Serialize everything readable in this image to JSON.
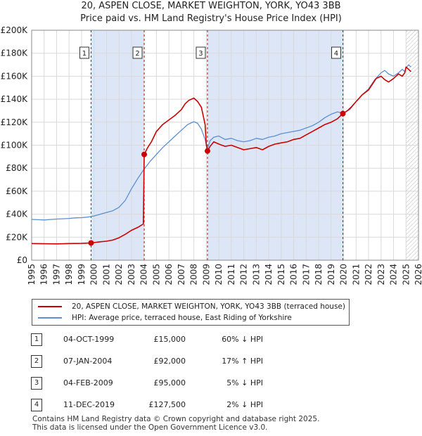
{
  "title": {
    "line1": "20, ASPEN CLOSE, MARKET WEIGHTON, YORK, YO43 3BB",
    "line2": "Price paid vs. HM Land Registry's House Price Index (HPI)"
  },
  "legend": {
    "property": "20, ASPEN CLOSE, MARKET WEIGHTON, YORK, YO43 3BB (terraced house)",
    "hpi": "HPI: Average price, terraced house, East Riding of Yorkshire"
  },
  "colors": {
    "property": "#cc0000",
    "hpi": "#5b8fd1",
    "shade": "#dde6f7",
    "vline": "#cc0000"
  },
  "sales": [
    {
      "num": "1",
      "date": "04-OCT-1999",
      "price": "£15,000",
      "hpi": "60% ↓ HPI"
    },
    {
      "num": "2",
      "date": "07-JAN-2004",
      "price": "£92,000",
      "hpi": "17% ↑ HPI"
    },
    {
      "num": "3",
      "date": "04-FEB-2009",
      "price": "£95,000",
      "hpi": "5% ↓ HPI"
    },
    {
      "num": "4",
      "date": "11-DEC-2019",
      "price": "£127,500",
      "hpi": "2% ↓ HPI"
    }
  ],
  "footer": {
    "line1": "Contains HM Land Registry data © Crown copyright and database right 2025.",
    "line2": "This data is licensed under the Open Government Licence v3.0."
  },
  "chart_data": {
    "type": "line",
    "title": "20, ASPEN CLOSE, MARKET WEIGHTON, YORK, YO43 3BB — Price paid vs. HM Land Registry's House Price Index (HPI)",
    "xlim": [
      1995,
      2026
    ],
    "ylim": [
      0,
      200000
    ],
    "yticks": [
      0,
      20000,
      40000,
      60000,
      80000,
      100000,
      120000,
      140000,
      160000,
      180000,
      200000
    ],
    "ytick_labels": [
      "£0",
      "£20K",
      "£40K",
      "£60K",
      "£80K",
      "£100K",
      "£120K",
      "£140K",
      "£160K",
      "£180K",
      "£200K"
    ],
    "xticks": [
      1995,
      1996,
      1997,
      1998,
      1999,
      2000,
      2001,
      2002,
      2003,
      2004,
      2005,
      2006,
      2007,
      2008,
      2009,
      2010,
      2011,
      2012,
      2013,
      2014,
      2015,
      2016,
      2017,
      2018,
      2019,
      2020,
      2021,
      2022,
      2023,
      2024,
      2025,
      2026
    ],
    "xtick_labels": [
      "1995",
      "1996",
      "1997",
      "1998",
      "1999",
      "2000",
      "2001",
      "2002",
      "2003",
      "2004",
      "2005",
      "2006",
      "2007",
      "2008",
      "2009",
      "2010",
      "2011",
      "2012",
      "2013",
      "2014",
      "2015",
      "2016",
      "2017",
      "2018",
      "2019",
      "2020",
      "2021",
      "2022",
      "2023",
      "2024",
      "2025",
      "2026"
    ],
    "grid": true,
    "shaded_ranges": [
      [
        1999.76,
        2004.02
      ],
      [
        2009.09,
        2019.94
      ]
    ],
    "future_hatch_from": 2025.0,
    "sale_markers": [
      {
        "label": "1",
        "x": 1999.76,
        "y": 15000
      },
      {
        "label": "2",
        "x": 2004.02,
        "y": 92000
      },
      {
        "label": "3",
        "x": 2009.09,
        "y": 95000
      },
      {
        "label": "4",
        "x": 2019.94,
        "y": 127500
      }
    ],
    "series": [
      {
        "name": "20, ASPEN CLOSE, MARKET WEIGHTON, YORK, YO43 3BB (terraced house)",
        "color": "#cc0000",
        "x": [
          1995.0,
          1996.0,
          1997.0,
          1998.0,
          1999.0,
          1999.76,
          2000.5,
          2001.0,
          2001.5,
          2002.0,
          2002.5,
          2003.0,
          2003.5,
          2003.95,
          2004.0,
          2004.02,
          2004.3,
          2004.6,
          2005.0,
          2005.5,
          2006.0,
          2006.5,
          2007.0,
          2007.3,
          2007.6,
          2008.0,
          2008.3,
          2008.6,
          2008.9,
          2009.0,
          2009.09,
          2009.3,
          2009.6,
          2010.0,
          2010.5,
          2011.0,
          2011.5,
          2012.0,
          2012.5,
          2013.0,
          2013.5,
          2014.0,
          2014.5,
          2015.0,
          2015.5,
          2016.0,
          2016.5,
          2017.0,
          2017.5,
          2018.0,
          2018.5,
          2019.0,
          2019.5,
          2019.94,
          2020.3,
          2020.6,
          2021.0,
          2021.5,
          2022.0,
          2022.3,
          2022.6,
          2023.0,
          2023.3,
          2023.6,
          2024.0,
          2024.4,
          2024.7,
          2024.9,
          2025.0,
          2025.2,
          2025.4
        ],
        "y": [
          14500,
          14300,
          14200,
          14500,
          14600,
          15000,
          16000,
          16500,
          17500,
          19500,
          22500,
          26000,
          28500,
          31500,
          75000,
          92000,
          98000,
          103000,
          112000,
          118000,
          122000,
          126000,
          131000,
          136000,
          139000,
          141000,
          138000,
          133000,
          118000,
          100000,
          95000,
          99000,
          103000,
          101000,
          99000,
          100000,
          98000,
          96000,
          97000,
          98000,
          96000,
          99000,
          101000,
          102000,
          103000,
          105000,
          106000,
          109000,
          112000,
          115000,
          118000,
          120000,
          123000,
          127500,
          130000,
          133000,
          138000,
          144000,
          148000,
          153000,
          158000,
          160000,
          157000,
          155000,
          158000,
          162000,
          160000,
          163000,
          168000,
          166000,
          164000
        ]
      },
      {
        "name": "HPI: Average price, terraced house, East Riding of Yorkshire",
        "color": "#5b8fd1",
        "x": [
          1995.0,
          1995.5,
          1996.0,
          1996.5,
          1997.0,
          1997.5,
          1998.0,
          1998.5,
          1999.0,
          1999.5,
          2000.0,
          2000.5,
          2001.0,
          2001.5,
          2002.0,
          2002.5,
          2003.0,
          2003.5,
          2004.0,
          2004.5,
          2005.0,
          2005.5,
          2006.0,
          2006.5,
          2007.0,
          2007.5,
          2008.0,
          2008.3,
          2008.6,
          2008.9,
          2009.0,
          2009.09,
          2009.3,
          2009.6,
          2010.0,
          2010.5,
          2011.0,
          2011.5,
          2012.0,
          2012.5,
          2013.0,
          2013.5,
          2014.0,
          2014.5,
          2015.0,
          2015.5,
          2016.0,
          2016.5,
          2017.0,
          2017.5,
          2018.0,
          2018.5,
          2019.0,
          2019.5,
          2020.0,
          2020.5,
          2021.0,
          2021.5,
          2022.0,
          2022.5,
          2023.0,
          2023.3,
          2023.6,
          2024.0,
          2024.4,
          2024.7,
          2024.9,
          2025.0,
          2025.2,
          2025.4
        ],
        "y": [
          35500,
          35200,
          35000,
          35400,
          35800,
          36000,
          36300,
          36800,
          37000,
          37500,
          38500,
          40000,
          41500,
          43000,
          46000,
          52000,
          62000,
          71000,
          79000,
          86000,
          92000,
          98000,
          103000,
          108000,
          113000,
          118000,
          120500,
          119000,
          114000,
          105000,
          100000,
          97000,
          104000,
          107000,
          108000,
          105000,
          106000,
          104000,
          103000,
          104000,
          106000,
          105000,
          107000,
          108000,
          110000,
          111000,
          112000,
          113000,
          115000,
          117000,
          120000,
          124000,
          127000,
          129000,
          128000,
          131000,
          138000,
          144000,
          149000,
          157000,
          163000,
          165000,
          162000,
          160000,
          163000,
          166000,
          164000,
          167000,
          170000,
          168000
        ]
      }
    ]
  }
}
